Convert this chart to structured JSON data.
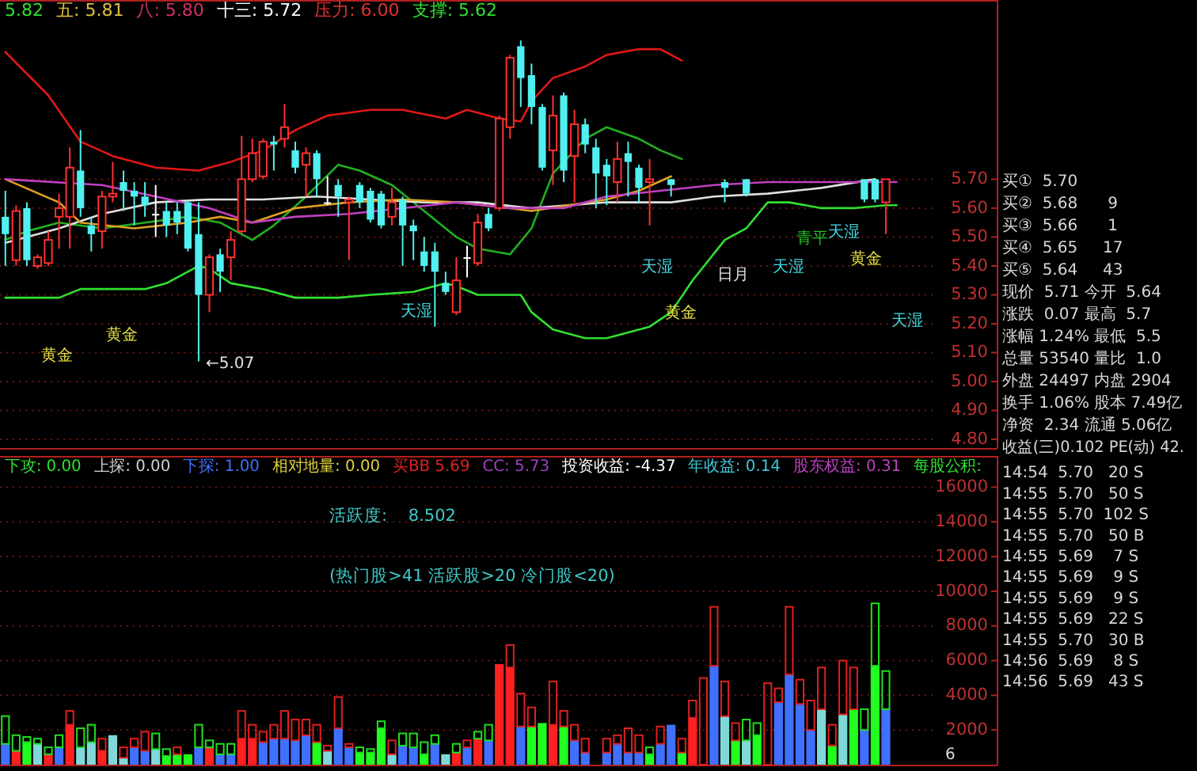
{
  "chart_data": [
    {
      "type": "candlestick",
      "ylim": [
        4.77,
        6.32
      ],
      "tick_labels": "y",
      "grid": "y",
      "categories": [
        null,
        null,
        null,
        null,
        null,
        null,
        null,
        null,
        null,
        null,
        null,
        null,
        null,
        null,
        null,
        null,
        null,
        null,
        null,
        null,
        null,
        null,
        null,
        null,
        null,
        null,
        null,
        null,
        null,
        null,
        null,
        null,
        null,
        null,
        null,
        null,
        null,
        null,
        null,
        null,
        null,
        null,
        null,
        null,
        null,
        null,
        null,
        null,
        null,
        null,
        null,
        null,
        null,
        null,
        null,
        null,
        null,
        null,
        null,
        null,
        null,
        null,
        null,
        null,
        null,
        null,
        null,
        null,
        null,
        null,
        null,
        null,
        null,
        null,
        null,
        null,
        null,
        null,
        null,
        null,
        null,
        null,
        null,
        null,
        null,
        null,
        null
      ],
      "yticks": [
        {
          "value": 4.8,
          "label": "4.80"
        },
        {
          "value": 4.9,
          "label": "4.90"
        },
        {
          "value": 5.0,
          "label": "5.00"
        },
        {
          "value": 5.1,
          "label": "5.10"
        },
        {
          "value": 5.2,
          "label": "5.20"
        },
        {
          "value": 5.3,
          "label": "5.30"
        },
        {
          "value": 5.4,
          "label": "5.40"
        },
        {
          "value": 5.5,
          "label": "5.50"
        },
        {
          "value": 5.6,
          "label": "5.60"
        },
        {
          "value": 5.7,
          "label": "5.70"
        }
      ],
      "ohlc": [
        [
          5.57,
          5.66,
          5.4,
          5.51
        ],
        [
          5.42,
          5.61,
          5.4,
          5.59
        ],
        [
          5.6,
          5.62,
          5.4,
          5.42
        ],
        [
          5.4,
          5.44,
          5.39,
          5.43
        ],
        [
          5.41,
          5.52,
          5.4,
          5.49
        ],
        [
          5.57,
          5.65,
          5.46,
          5.6
        ],
        [
          5.57,
          5.81,
          5.46,
          5.74
        ],
        [
          5.73,
          5.87,
          5.57,
          5.6
        ],
        [
          5.54,
          5.57,
          5.45,
          5.51
        ],
        [
          5.52,
          5.66,
          5.46,
          5.64
        ],
        [
          5.64,
          5.76,
          5.62,
          5.65
        ],
        [
          5.69,
          5.73,
          5.59,
          5.66
        ],
        [
          5.66,
          5.69,
          5.54,
          5.64
        ],
        [
          5.64,
          5.69,
          5.57,
          5.61
        ],
        [
          5.58,
          5.68,
          5.5,
          5.58
        ],
        [
          5.59,
          5.62,
          5.5,
          5.54
        ],
        [
          5.59,
          5.62,
          5.51,
          5.55
        ],
        [
          5.62,
          5.63,
          5.45,
          5.46
        ],
        [
          5.51,
          5.62,
          5.07,
          5.3
        ],
        [
          5.3,
          5.44,
          5.24,
          5.43
        ],
        [
          5.44,
          5.46,
          5.31,
          5.38
        ],
        [
          5.43,
          5.52,
          5.35,
          5.49
        ],
        [
          5.52,
          5.85,
          5.51,
          5.7
        ],
        [
          5.7,
          5.84,
          5.69,
          5.79
        ],
        [
          5.71,
          5.84,
          5.7,
          5.83
        ],
        [
          5.83,
          5.85,
          5.73,
          5.82
        ],
        [
          5.84,
          5.96,
          5.81,
          5.88
        ],
        [
          5.8,
          5.83,
          5.72,
          5.74
        ],
        [
          5.75,
          5.81,
          5.64,
          5.79
        ],
        [
          5.79,
          5.8,
          5.64,
          5.7
        ],
        [
          5.62,
          5.71,
          5.61,
          5.62
        ],
        [
          5.68,
          5.7,
          5.57,
          5.64
        ],
        [
          5.62,
          5.64,
          5.42,
          5.63
        ],
        [
          5.68,
          5.69,
          5.6,
          5.62
        ],
        [
          5.66,
          5.67,
          5.55,
          5.56
        ],
        [
          5.65,
          5.66,
          5.53,
          5.54
        ],
        [
          5.57,
          5.67,
          5.54,
          5.62
        ],
        [
          5.63,
          5.64,
          5.4,
          5.54
        ],
        [
          5.54,
          5.56,
          5.42,
          5.52
        ],
        [
          5.45,
          5.5,
          5.38,
          5.4
        ],
        [
          5.45,
          5.48,
          5.19,
          5.38
        ],
        [
          5.34,
          5.38,
          5.3,
          5.31
        ],
        [
          5.24,
          5.43,
          5.23,
          5.35
        ],
        [
          5.43,
          5.47,
          5.36,
          5.43
        ],
        [
          5.41,
          5.58,
          5.4,
          5.55
        ],
        [
          5.58,
          5.6,
          5.52,
          5.53
        ],
        [
          5.6,
          5.92,
          5.59,
          5.91
        ],
        [
          5.88,
          6.13,
          5.84,
          6.12
        ],
        [
          6.16,
          6.18,
          5.95,
          6.05
        ],
        [
          6.06,
          6.1,
          5.89,
          5.95
        ],
        [
          5.95,
          5.96,
          5.73,
          5.74
        ],
        [
          5.8,
          5.99,
          5.68,
          5.92
        ],
        [
          5.99,
          6.0,
          5.69,
          5.73
        ],
        [
          5.78,
          5.94,
          5.62,
          5.89
        ],
        [
          5.89,
          5.91,
          5.79,
          5.82
        ],
        [
          5.81,
          5.84,
          5.6,
          5.72
        ],
        [
          5.75,
          5.77,
          5.61,
          5.71
        ],
        [
          5.69,
          5.83,
          5.62,
          5.77
        ],
        [
          5.79,
          5.83,
          5.64,
          5.76
        ],
        [
          5.74,
          5.75,
          5.62,
          5.67
        ],
        [
          5.69,
          5.77,
          5.54,
          5.7
        ],
        null,
        [
          5.7,
          5.7,
          5.64,
          5.68
        ],
        null,
        null,
        null,
        null,
        [
          5.69,
          5.7,
          5.62,
          5.67
        ],
        null,
        [
          5.7,
          5.7,
          5.64,
          5.65
        ],
        null,
        null,
        null,
        null,
        null,
        null,
        null,
        null,
        null,
        null,
        [
          5.7,
          5.7,
          5.62,
          5.63
        ],
        [
          5.7,
          5.7,
          5.62,
          5.63
        ],
        [
          5.62,
          5.7,
          5.51,
          5.7
        ],
        null,
        null,
        null,
        null
      ],
      "colors": [
        "#50f0f0",
        "#ff3030",
        "#50f0f0",
        "#ff3030",
        "#ff3030",
        "#ff3030",
        "#ff3030",
        "#50f0f0",
        "#50f0f0",
        "#ff3030",
        "#ff3030",
        "#50f0f0",
        "#50f0f0",
        "#50f0f0",
        "#ffffff",
        "#50f0f0",
        "#50f0f0",
        "#50f0f0",
        "#50f0f0",
        "#ff3030",
        "#50f0f0",
        "#ff3030",
        "#ff3030",
        "#ff3030",
        "#ff3030",
        "#50f0f0",
        "#ff3030",
        "#50f0f0",
        "#ff3030",
        "#50f0f0",
        "#ffffff",
        "#50f0f0",
        "#ff3030",
        "#50f0f0",
        "#50f0f0",
        "#50f0f0",
        "#ff3030",
        "#50f0f0",
        "#50f0f0",
        "#50f0f0",
        "#50f0f0",
        "#50f0f0",
        "#ff3030",
        "#ffffff",
        "#ff3030",
        "#50f0f0",
        "#ff3030",
        "#ff3030",
        "#50f0f0",
        "#50f0f0",
        "#50f0f0",
        "#ff3030",
        "#50f0f0",
        "#ff3030",
        "#50f0f0",
        "#50f0f0",
        "#50f0f0",
        "#ff3030",
        "#50f0f0",
        "#50f0f0",
        "#ff3030",
        null,
        "#50f0f0",
        null,
        null,
        null,
        null,
        "#50f0f0",
        null,
        "#50f0f0",
        null,
        null,
        null,
        null,
        null,
        null,
        null,
        null,
        null,
        null,
        "#50f0f0",
        "#50f0f0",
        "#ff3030",
        null,
        null,
        null,
        null
      ],
      "series": [
        {
          "type": "line",
          "color": "#e01818",
          "values": [
            6.14,
            null,
            null,
            null,
            5.99,
            null,
            null,
            5.83,
            null,
            null,
            5.78,
            null,
            null,
            null,
            5.74,
            null,
            null,
            null,
            5.73,
            null,
            null,
            5.76,
            null,
            null,
            5.8,
            null,
            null,
            5.87,
            null,
            null,
            5.92,
            null,
            null,
            null,
            5.94,
            null,
            null,
            5.94,
            null,
            null,
            null,
            5.91,
            null,
            5.94,
            null,
            null,
            5.91,
            null,
            5.9,
            5.97,
            null,
            6.05,
            null,
            null,
            6.09,
            null,
            6.13,
            null,
            null,
            6.15,
            null,
            6.15,
            null,
            6.11,
            null,
            null,
            null,
            null,
            null,
            null,
            null,
            null,
            null,
            null,
            null,
            null,
            null,
            null,
            null,
            null,
            null,
            null,
            null,
            null,
            null,
            null,
            null
          ]
        },
        {
          "type": "line",
          "color": "#30e030",
          "values": [
            5.29,
            null,
            null,
            null,
            null,
            5.29,
            null,
            5.32,
            null,
            null,
            null,
            null,
            null,
            5.32,
            null,
            5.34,
            null,
            null,
            5.4,
            5.39,
            null,
            5.34,
            null,
            null,
            5.32,
            null,
            null,
            5.29,
            null,
            null,
            null,
            5.29,
            null,
            null,
            5.3,
            null,
            null,
            null,
            5.31,
            null,
            null,
            5.34,
            5.33,
            null,
            5.3,
            null,
            null,
            null,
            5.3,
            5.24,
            null,
            5.18,
            null,
            null,
            5.15,
            null,
            5.15,
            null,
            null,
            null,
            5.19,
            null,
            5.24,
            null,
            5.35,
            null,
            null,
            5.49,
            null,
            5.53,
            null,
            5.62,
            null,
            5.62,
            null,
            null,
            5.6,
            null,
            null,
            5.6,
            null,
            null,
            5.61,
            5.61,
            null,
            null,
            null
          ]
        },
        {
          "type": "line",
          "color": "#20b020",
          "values": [
            5.49,
            null,
            5.52,
            null,
            null,
            5.55,
            null,
            null,
            null,
            5.53,
            null,
            null,
            null,
            5.55,
            null,
            null,
            null,
            5.57,
            null,
            null,
            5.55,
            null,
            null,
            5.49,
            null,
            5.54,
            null,
            null,
            5.64,
            null,
            null,
            5.75,
            null,
            5.73,
            null,
            null,
            5.68,
            null,
            null,
            5.59,
            null,
            null,
            5.5,
            null,
            5.46,
            null,
            null,
            5.44,
            null,
            5.53,
            null,
            5.72,
            null,
            null,
            5.84,
            null,
            5.88,
            null,
            null,
            5.84,
            null,
            5.8,
            null,
            5.77,
            null,
            null,
            null,
            null,
            null,
            null,
            null,
            null,
            null,
            null,
            null,
            null,
            null,
            null,
            null,
            null,
            null,
            null,
            null,
            null,
            null,
            null,
            null
          ]
        },
        {
          "type": "line",
          "color": "#e0e0e0",
          "values": [
            5.48,
            null,
            null,
            null,
            null,
            5.53,
            null,
            null,
            null,
            5.58,
            null,
            null,
            null,
            null,
            5.62,
            null,
            null,
            null,
            null,
            5.63,
            null,
            null,
            null,
            null,
            5.63,
            null,
            null,
            null,
            null,
            5.64,
            null,
            null,
            null,
            null,
            5.63,
            null,
            null,
            null,
            null,
            5.62,
            null,
            null,
            null,
            null,
            5.62,
            null,
            null,
            null,
            null,
            5.6,
            null,
            null,
            null,
            null,
            null,
            null,
            5.62,
            null,
            null,
            null,
            null,
            null,
            5.62,
            null,
            null,
            null,
            5.64,
            null,
            null,
            null,
            null,
            5.65,
            null,
            null,
            null,
            null,
            5.67,
            null,
            null,
            null,
            null,
            5.7,
            null,
            null,
            null,
            null,
            null
          ]
        },
        {
          "type": "line",
          "color": "#e0a020",
          "values": [
            5.7,
            null,
            null,
            null,
            null,
            5.62,
            null,
            5.55,
            null,
            null,
            null,
            null,
            5.53,
            null,
            null,
            null,
            null,
            5.55,
            null,
            null,
            5.57,
            null,
            null,
            5.55,
            null,
            null,
            null,
            5.6,
            null,
            null,
            null,
            null,
            5.62,
            null,
            null,
            null,
            null,
            5.63,
            null,
            null,
            null,
            null,
            5.62,
            null,
            null,
            null,
            null,
            5.6,
            null,
            5.59,
            null,
            null,
            null,
            null,
            null,
            null,
            5.63,
            null,
            null,
            5.66,
            null,
            null,
            5.71,
            null,
            null,
            null,
            null,
            null,
            null,
            null,
            null,
            null,
            null,
            null,
            null,
            null,
            null,
            null,
            null,
            null,
            null,
            null,
            null,
            null,
            null,
            null,
            null
          ]
        },
        {
          "type": "line",
          "color": "#c040c0",
          "values": [
            5.7,
            null,
            null,
            null,
            null,
            null,
            null,
            null,
            null,
            5.68,
            null,
            null,
            null,
            null,
            5.64,
            null,
            null,
            null,
            null,
            5.6,
            null,
            null,
            null,
            5.55,
            null,
            null,
            null,
            5.57,
            null,
            null,
            null,
            null,
            5.58,
            null,
            null,
            null,
            null,
            5.6,
            null,
            null,
            null,
            null,
            5.62,
            null,
            null,
            null,
            null,
            5.6,
            null,
            null,
            null,
            null,
            5.6,
            null,
            null,
            null,
            5.64,
            null,
            null,
            null,
            null,
            null,
            null,
            null,
            null,
            null,
            5.68,
            null,
            null,
            null,
            null,
            5.69,
            null,
            null,
            null,
            null,
            5.69,
            null,
            null,
            null,
            null,
            null,
            null,
            5.69,
            null,
            null,
            null
          ]
        }
      ],
      "title": "5.82  五: 5.81  八: 5.80  十三: 5.72  压力: 6.00  支撑: 5.62",
      "annotations": [
        "黄金",
        "黄金",
        "天湿",
        "天湿",
        "黄金",
        "日月",
        "天湿",
        "青平",
        "天湿",
        "黄金",
        "天湿",
        "←5.07"
      ]
    },
    {
      "type": "bar",
      "stacked": true,
      "ylim": [
        0,
        17800
      ],
      "tick_labels": "y",
      "grid": "y",
      "categories": [
        null,
        null,
        null,
        null,
        null,
        null,
        null,
        null,
        null,
        null,
        null,
        null,
        null,
        null,
        null,
        null,
        null,
        null,
        null,
        null,
        null,
        null,
        null,
        null,
        null,
        null,
        null,
        null,
        null,
        null,
        null,
        null,
        null,
        null,
        null,
        null,
        null,
        null,
        null,
        null,
        null,
        null,
        null,
        null,
        null,
        null,
        null,
        null,
        null,
        null,
        null,
        null,
        null,
        null,
        null,
        null,
        null,
        null,
        null,
        null,
        null,
        null,
        null,
        null,
        null,
        null,
        null,
        null,
        null,
        null,
        null,
        null,
        null,
        null,
        null,
        null,
        null,
        null,
        null,
        null,
        null,
        null,
        null,
        null,
        null,
        null,
        null
      ],
      "yticks": [
        2000,
        4000,
        6000,
        8000,
        10000,
        12000,
        14000,
        16000
      ],
      "series": [
        {
          "values": [
            1200,
            800,
            1300,
            1200,
            600,
            1000,
            2300,
            1000,
            1300,
            800,
            1700,
            400,
            1000,
            800,
            900,
            500,
            600,
            600,
            1000,
            1000,
            600,
            600,
            1500,
            1500,
            1300,
            1500,
            1500,
            1400,
            1700,
            1300,
            800,
            2100,
            1000,
            700,
            700,
            2100,
            600,
            1100,
            1000,
            600,
            1200,
            600,
            700,
            1000,
            1500,
            1400,
            5800,
            5600,
            2200,
            2200,
            2400,
            2300,
            2200,
            1400,
            700,
            null,
            700,
            1200,
            700,
            700,
            600,
            1200,
            2300,
            700,
            2700,
            0,
            5700,
            2800,
            1400,
            1400,
            1700,
            0,
            3600,
            5200,
            3500,
            2000,
            3200,
            1100,
            2900,
            3200,
            2000,
            5700,
            3200,
            null,
            null,
            null,
            null
          ],
          "colors": [
            "#4070ff",
            "#ff2020",
            "#20ff20",
            "#80d8d8",
            "#ff2020",
            "#4070ff",
            "#ff2020",
            "#80d8d8",
            "#80d8d8",
            "#ff2020",
            "#80d8d8",
            "#80d8d8",
            "#4070ff",
            "#4070ff",
            "#80d8d8",
            "#20ff20",
            "#20ff20",
            "#20ff20",
            "#4070ff",
            "#ff2020",
            "#4070ff",
            "#4070ff",
            "#ff2020",
            "#ff2020",
            "#4070ff",
            "#4070ff",
            "#4070ff",
            "#4070ff",
            "#4070ff",
            "#20ff20",
            "#80d8d8",
            "#4070ff",
            "#4070ff",
            "#20ff20",
            "#20ff20",
            "#20ff20",
            "#80d8d8",
            "#4070ff",
            "#4070ff",
            "#20ff20",
            "#4070ff",
            "#80d8d8",
            "#ff2020",
            "#4070ff",
            "#ff2020",
            "#4070ff",
            "#ff2020",
            "#ff2020",
            "#4070ff",
            "#20ff20",
            "#20ff20",
            "#ff2020",
            "#20ff20",
            "#4070ff",
            "#4070ff",
            null,
            "#4070ff",
            "#4070ff",
            "#4070ff",
            "#4070ff",
            "#20ff20",
            "#4070ff",
            "#4070ff",
            "#20ff20",
            "#ff2020",
            "#ff2020",
            "#4070ff",
            "#80d8d8",
            "#20ff20",
            "#80d8d8",
            "#20ff20",
            "#ff2020",
            "#4070ff",
            "#4070ff",
            "#4070ff",
            "#4070ff",
            "#80d8d8",
            "#20ff20",
            "#80d8d8",
            "#20ff20",
            "#4070ff",
            "#20ff20",
            "#4070ff",
            null,
            null,
            null,
            null
          ]
        },
        {
          "values": [
            1600,
            900,
            300,
            300,
            400,
            700,
            800,
            1100,
            1000,
            700,
            0,
            600,
            500,
            1100,
            900,
            400,
            400,
            0,
            1300,
            400,
            600,
            600,
            1600,
            800,
            600,
            800,
            1600,
            1200,
            900,
            1000,
            300,
            1800,
            200,
            300,
            200,
            400,
            800,
            700,
            800,
            700,
            500,
            0,
            500,
            400,
            400,
            900,
            0,
            1300,
            1900,
            1100,
            0,
            2500,
            900,
            900,
            800,
            null,
            800,
            500,
            1400,
            1000,
            400,
            1000,
            0,
            800,
            1000,
            5000,
            3400,
            2000,
            1000,
            1200,
            700,
            4700,
            800,
            3900,
            1400,
            1700,
            2400,
            1200,
            3100,
            2400,
            1200,
            3600,
            2200,
            null,
            null,
            null,
            null
          ],
          "colors": [
            "#20e020",
            "#20e020",
            "#20e020",
            "#20e020",
            "#20e020",
            "#20e020",
            "#e02020",
            "#20e020",
            "#20e020",
            "#e02020",
            "#80d8d8",
            "#e02020",
            "#e02020",
            "#e02020",
            "#20e020",
            "#20e020",
            "#e02020",
            "#20e020",
            "#20e020",
            "#20e020",
            "#20e020",
            "#20e020",
            "#e02020",
            "#e02020",
            "#e02020",
            "#e02020",
            "#e02020",
            "#e02020",
            "#e02020",
            "#e02020",
            "#e02020",
            "#e02020",
            "#e02020",
            "#20e020",
            "#20e020",
            "#20e020",
            "#e02020",
            "#20e020",
            "#20e020",
            "#20e020",
            "#20e020",
            "#20e020",
            "#20e020",
            "#e02020",
            "#20e020",
            "#20e020",
            "#e02020",
            "#e02020",
            "#e02020",
            "#e02020",
            "#20e020",
            "#e02020",
            "#e02020",
            "#e02020",
            "#e02020",
            null,
            "#e02020",
            "#e02020",
            "#e02020",
            "#e02020",
            "#20e020",
            "#e02020",
            "#e02020",
            "#e02020",
            "#e02020",
            "#e02020",
            "#e02020",
            "#e02020",
            "#e02020",
            "#20e020",
            "#20e020",
            "#e02020",
            "#e02020",
            "#e02020",
            "#e02020",
            "#e02020",
            "#e02020",
            "#e02020",
            "#e02020",
            "#e02020",
            "#20e020",
            "#20e020",
            "#20e020",
            null,
            null,
            null,
            null
          ]
        }
      ],
      "subtitle": "活跃度:    8.502\n(热门股>41 活跃股>20 冷门股<20)",
      "title": "下攻: 0.00  上探: 0.00  下探: 1.00  相对地量: 0.00  买BB 5.69  CC: 5.73  投资收益: -4.37  年收益: 0.14  股东权益: 0.31  每股公积:"
    },
    {
      "type": "other",
      "annotations": [
        "买①  5.70",
        "买②  5.68      9",
        "买③  5.66      1",
        "买④  5.65     17",
        "买⑤  5.64     43",
        "现价  5.71 今开  5.64",
        "涨跌  0.07 最高  5.7",
        "涨幅 1.24% 最低  5.5",
        "总量 53540 量比  1.0",
        "外盘 24497 内盘 2904",
        "换手 1.06% 股本 7.49亿",
        "净资  2.34 流通 5.06亿",
        "收益(三)0.102 PE(动) 42.",
        "14:54  5.70   20 S",
        "14:55  5.70   50 S",
        "14:55  5.70  102 S",
        "14:55  5.70   50 B",
        "14:55  5.69    7 S",
        "14:55  5.69    9 S",
        "14:55  5.69    9 S",
        "14:55  5.69   22 S",
        "14:55  5.70   30 B",
        "14:56  5.69    8 S",
        "14:56  5.69   43 S",
        "6"
      ]
    }
  ]
}
